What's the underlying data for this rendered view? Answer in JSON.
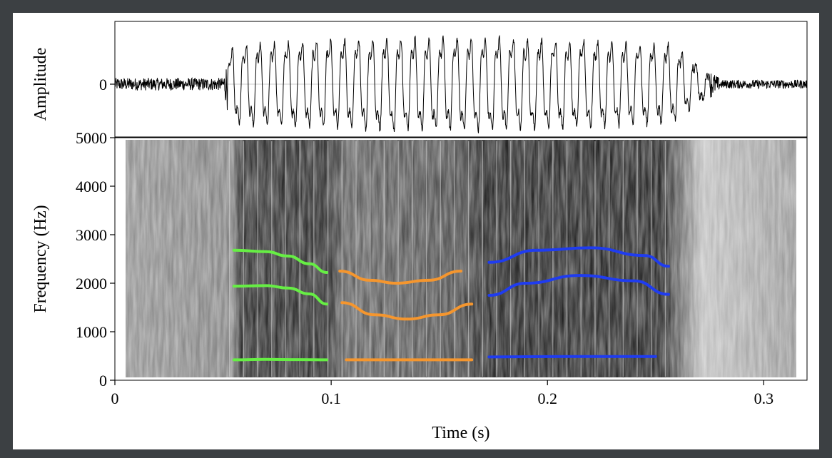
{
  "chart_data": [
    {
      "type": "line",
      "panel": "waveform",
      "ylabel": "Amplitude",
      "yticks": [
        {
          "value": 0,
          "label": "0"
        }
      ],
      "xlim": [
        0,
        0.32
      ],
      "ylim": [
        -1,
        1
      ],
      "grid": false,
      "note_text": ""
    },
    {
      "type": "heatmap",
      "panel": "spectrogram",
      "xlabel": "Time (s)",
      "ylabel": "Frequency (Hz)",
      "xlim": [
        0,
        0.32
      ],
      "ylim": [
        0,
        5000
      ],
      "xticks": [
        {
          "value": 0,
          "label": "0"
        },
        {
          "value": 0.1,
          "label": "0.1"
        },
        {
          "value": 0.2,
          "label": "0.2"
        },
        {
          "value": 0.3,
          "label": "0.3"
        }
      ],
      "yticks": [
        {
          "value": 0,
          "label": "0"
        },
        {
          "value": 1000,
          "label": "1000"
        },
        {
          "value": 2000,
          "label": "2000"
        },
        {
          "value": 3000,
          "label": "3000"
        },
        {
          "value": 4000,
          "label": "4000"
        },
        {
          "value": 5000,
          "label": "5000"
        }
      ],
      "grid": false,
      "series": [
        {
          "color": "#66ee44",
          "points": [
            [
              0.055,
              420
            ],
            [
              0.07,
              430
            ],
            [
              0.085,
              425
            ],
            [
              0.098,
              420
            ]
          ]
        },
        {
          "color": "#66ee44",
          "points": [
            [
              0.055,
              1940
            ],
            [
              0.07,
              1950
            ],
            [
              0.08,
              1900
            ],
            [
              0.09,
              1780
            ],
            [
              0.098,
              1570
            ]
          ]
        },
        {
          "color": "#66ee44",
          "points": [
            [
              0.055,
              2680
            ],
            [
              0.07,
              2650
            ],
            [
              0.08,
              2560
            ],
            [
              0.09,
              2400
            ],
            [
              0.098,
              2220
            ]
          ]
        },
        {
          "color": "#f5962e",
          "points": [
            [
              0.107,
              420
            ],
            [
              0.135,
              420
            ],
            [
              0.165,
              420
            ]
          ]
        },
        {
          "color": "#f5962e",
          "points": [
            [
              0.105,
              1600
            ],
            [
              0.12,
              1350
            ],
            [
              0.135,
              1260
            ],
            [
              0.15,
              1350
            ],
            [
              0.165,
              1570
            ]
          ]
        },
        {
          "color": "#f5962e",
          "points": [
            [
              0.104,
              2250
            ],
            [
              0.118,
              2060
            ],
            [
              0.13,
              2000
            ],
            [
              0.145,
              2060
            ],
            [
              0.16,
              2250
            ]
          ]
        },
        {
          "color": "#1f3cf0",
          "points": [
            [
              0.173,
              480
            ],
            [
              0.21,
              490
            ],
            [
              0.25,
              490
            ]
          ]
        },
        {
          "color": "#1f3cf0",
          "points": [
            [
              0.173,
              1750
            ],
            [
              0.19,
              2000
            ],
            [
              0.215,
              2160
            ],
            [
              0.24,
              2050
            ],
            [
              0.256,
              1770
            ]
          ]
        },
        {
          "color": "#1f3cf0",
          "points": [
            [
              0.173,
              2430
            ],
            [
              0.195,
              2680
            ],
            [
              0.22,
              2730
            ],
            [
              0.245,
              2570
            ],
            [
              0.256,
              2350
            ]
          ]
        }
      ]
    }
  ]
}
